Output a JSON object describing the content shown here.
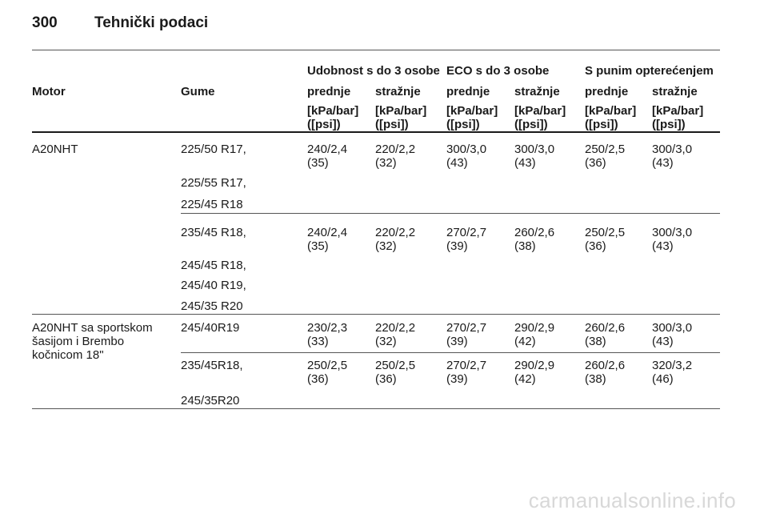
{
  "page": {
    "number": "300",
    "title": "Tehnički podaci"
  },
  "table": {
    "group_headers": [
      "Udobnost s do 3 osobe",
      "ECO s do 3 osobe",
      "S punim opterećenjem"
    ],
    "col_motor": "Motor",
    "col_tyres": "Gume",
    "axle_labels": [
      "prednje",
      "stražnje",
      "prednje",
      "stražnje",
      "prednje",
      "stražnje"
    ],
    "unit_line1": "[kPa/bar]",
    "unit_line2": "([psi])",
    "groups": [
      {
        "motor": [
          "A20NHT"
        ],
        "rows": [
          {
            "tyre": "225/50 R17,",
            "values": [
              [
                "240/2,4",
                "(35)"
              ],
              [
                "220/2,2",
                "(32)"
              ],
              [
                "300/3,0",
                "(43)"
              ],
              [
                "300/3,0",
                "(43)"
              ],
              [
                "250/2,5",
                "(36)"
              ],
              [
                "300/3,0",
                "(43)"
              ]
            ]
          },
          {
            "tyre": "225/55 R17,"
          },
          {
            "tyre": "225/45 R18"
          }
        ]
      },
      {
        "rows": [
          {
            "tyre": "235/45 R18,",
            "values": [
              [
                "240/2,4",
                "(35)"
              ],
              [
                "220/2,2",
                "(32)"
              ],
              [
                "270/2,7",
                "(39)"
              ],
              [
                "260/2,6",
                "(38)"
              ],
              [
                "250/2,5",
                "(36)"
              ],
              [
                "300/3,0",
                "(43)"
              ]
            ]
          },
          {
            "tyre": "245/45 R18,"
          },
          {
            "tyre": "245/40 R19,"
          },
          {
            "tyre": "245/35 R20"
          }
        ]
      },
      {
        "motor": [
          "A20NHT sa sportskom",
          "šasijom i Brembo",
          "kočnicom 18\""
        ],
        "rows": [
          {
            "tyre": "245/40R19",
            "values": [
              [
                "230/2,3",
                "(33)"
              ],
              [
                "220/2,2",
                "(32)"
              ],
              [
                "270/2,7",
                "(39)"
              ],
              [
                "290/2,9",
                "(42)"
              ],
              [
                "260/2,6",
                "(38)"
              ],
              [
                "300/3,0",
                "(43)"
              ]
            ]
          }
        ]
      },
      {
        "rows": [
          {
            "tyre": "235/45R18,",
            "values": [
              [
                "250/2,5",
                "(36)"
              ],
              [
                "250/2,5",
                "(36)"
              ],
              [
                "270/2,7",
                "(39)"
              ],
              [
                "290/2,9",
                "(42)"
              ],
              [
                "260/2,6",
                "(38)"
              ],
              [
                "320/3,2",
                "(46)"
              ]
            ]
          },
          {
            "tyre": "245/35R20"
          }
        ]
      }
    ]
  },
  "watermark": "carmanualsonline.info"
}
